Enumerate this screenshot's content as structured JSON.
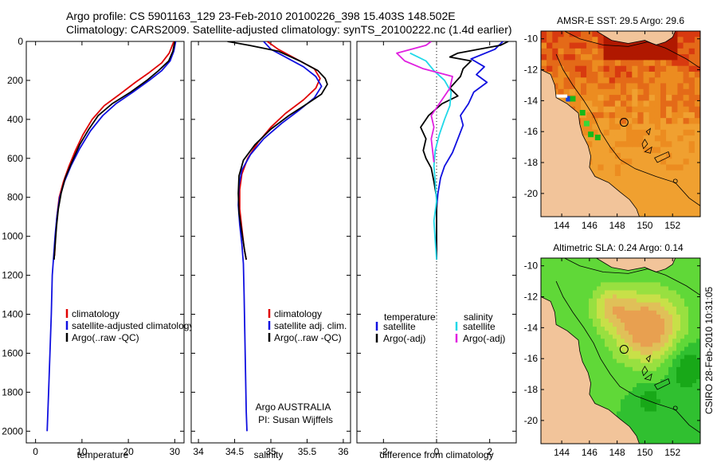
{
  "header": {
    "line1": "Argo profile: CS 5901163_129 23-Feb-2010 20100226_398 15.403S 148.502E",
    "line2": "Climatology: CARS2009. Satellite-adjusted climatology: synTS_20100222.nc (1.4d earlier)"
  },
  "colors": {
    "climatology": "#e00000",
    "satellite": "#1010e0",
    "argo": "#000000",
    "salinity_sat": "#20d8e8",
    "salinity_argo": "#e020e0",
    "land": "#f2c49a"
  },
  "chart_data": [
    {
      "id": "temperature",
      "type": "line",
      "xlabel": "temperature",
      "xlim": [
        -2,
        32
      ],
      "xticks": [
        0,
        10,
        20,
        30
      ],
      "ylim": [
        2060,
        0
      ],
      "yticks": [
        0,
        200,
        400,
        600,
        800,
        1000,
        1200,
        1400,
        1600,
        1800,
        2000
      ],
      "legend": [
        "climatology",
        "satellite-adjusted climatology",
        "Argo(..raw -QC)"
      ],
      "series": [
        {
          "name": "climatology",
          "color": "#e00000",
          "points": [
            [
              29.8,
              0
            ],
            [
              28.8,
              60
            ],
            [
              27.2,
              110
            ],
            [
              24.5,
              160
            ],
            [
              21.5,
              210
            ],
            [
              18.2,
              270
            ],
            [
              14.8,
              330
            ],
            [
              12.2,
              400
            ],
            [
              10.2,
              480
            ],
            [
              8.6,
              560
            ],
            [
              7.2,
              640
            ],
            [
              6.0,
              720
            ],
            [
              5.1,
              800
            ],
            [
              4.6,
              900
            ],
            [
              4.3,
              1000
            ],
            [
              4.1,
              1100
            ]
          ]
        },
        {
          "name": "satellite",
          "color": "#1010e0",
          "points": [
            [
              30.2,
              0
            ],
            [
              29.8,
              50
            ],
            [
              29.0,
              100
            ],
            [
              27.2,
              150
            ],
            [
              24.5,
              200
            ],
            [
              21.0,
              260
            ],
            [
              17.3,
              320
            ],
            [
              14.5,
              380
            ],
            [
              11.8,
              460
            ],
            [
              9.5,
              550
            ],
            [
              7.6,
              640
            ],
            [
              6.2,
              720
            ],
            [
              5.2,
              800
            ],
            [
              4.6,
              900
            ],
            [
              4.2,
              1000
            ],
            [
              3.9,
              1100
            ],
            [
              3.6,
              1200
            ],
            [
              3.4,
              1400
            ],
            [
              3.1,
              1600
            ],
            [
              2.8,
              1800
            ],
            [
              2.5,
              2000
            ]
          ]
        },
        {
          "name": "argo",
          "color": "#000000",
          "points": [
            [
              30.0,
              0
            ],
            [
              29.6,
              50
            ],
            [
              28.7,
              100
            ],
            [
              26.5,
              150
            ],
            [
              24.0,
              200
            ],
            [
              20.5,
              260
            ],
            [
              16.5,
              320
            ],
            [
              13.5,
              380
            ],
            [
              11.5,
              450
            ],
            [
              9.5,
              530
            ],
            [
              7.8,
              620
            ],
            [
              6.4,
              700
            ],
            [
              5.5,
              780
            ],
            [
              4.9,
              860
            ],
            [
              4.5,
              950
            ],
            [
              4.2,
              1050
            ],
            [
              4.0,
              1120
            ]
          ]
        }
      ]
    },
    {
      "id": "salinity",
      "type": "line",
      "xlabel": "salinity",
      "xlim": [
        33.9,
        36.1
      ],
      "xticks": [
        34,
        34.5,
        35,
        35.5,
        36
      ],
      "ylim": [
        2060,
        0
      ],
      "legend": [
        "climatology",
        "satellite adj. clim.",
        "Argo(..raw -QC)"
      ],
      "annotation": [
        "Argo AUSTRALIA",
        "PI: Susan Wijffels"
      ],
      "series": [
        {
          "name": "climatology",
          "color": "#e00000",
          "points": [
            [
              34.95,
              0
            ],
            [
              35.1,
              40
            ],
            [
              35.35,
              90
            ],
            [
              35.6,
              140
            ],
            [
              35.68,
              190
            ],
            [
              35.62,
              240
            ],
            [
              35.45,
              300
            ],
            [
              35.2,
              370
            ],
            [
              35.0,
              440
            ],
            [
              34.82,
              520
            ],
            [
              34.68,
              600
            ],
            [
              34.6,
              680
            ],
            [
              34.57,
              760
            ],
            [
              34.57,
              860
            ],
            [
              34.6,
              960
            ],
            [
              34.63,
              1060
            ],
            [
              34.66,
              1120
            ]
          ]
        },
        {
          "name": "satellite",
          "color": "#1010e0",
          "points": [
            [
              34.9,
              0
            ],
            [
              35.0,
              40
            ],
            [
              35.2,
              80
            ],
            [
              35.45,
              130
            ],
            [
              35.62,
              180
            ],
            [
              35.7,
              230
            ],
            [
              35.6,
              290
            ],
            [
              35.4,
              350
            ],
            [
              35.15,
              420
            ],
            [
              34.9,
              500
            ],
            [
              34.72,
              580
            ],
            [
              34.6,
              660
            ],
            [
              34.56,
              740
            ],
            [
              34.55,
              840
            ],
            [
              34.57,
              940
            ],
            [
              34.6,
              1040
            ],
            [
              34.62,
              1140
            ],
            [
              34.63,
              1300
            ],
            [
              34.64,
              1500
            ],
            [
              34.65,
              1700
            ],
            [
              34.66,
              1900
            ],
            [
              34.67,
              2000
            ]
          ]
        },
        {
          "name": "argo",
          "color": "#000000",
          "points": [
            [
              34.4,
              0
            ],
            [
              34.7,
              20
            ],
            [
              35.1,
              50
            ],
            [
              35.4,
              100
            ],
            [
              35.65,
              150
            ],
            [
              35.75,
              190
            ],
            [
              35.78,
              220
            ],
            [
              35.7,
              270
            ],
            [
              35.5,
              320
            ],
            [
              35.25,
              380
            ],
            [
              35.0,
              450
            ],
            [
              34.78,
              530
            ],
            [
              34.62,
              610
            ],
            [
              34.56,
              690
            ],
            [
              34.55,
              780
            ],
            [
              34.56,
              880
            ],
            [
              34.6,
              980
            ],
            [
              34.64,
              1080
            ],
            [
              34.66,
              1120
            ]
          ]
        }
      ]
    },
    {
      "id": "difference",
      "type": "line",
      "xlabel": "difference from climatology",
      "xlim": [
        -3,
        3
      ],
      "xticks": [
        -2,
        0,
        2
      ],
      "ylim": [
        2060,
        0
      ],
      "legend_headers": [
        "temperature",
        "salinity"
      ],
      "legend": [
        "satellite",
        "Argo(-adj)",
        "satellite",
        "Argo(-adj)"
      ],
      "series": [
        {
          "name": "temperature satellite",
          "color": "#1010e0",
          "points": [
            [
              2.5,
              0
            ],
            [
              2.2,
              40
            ],
            [
              1.3,
              90
            ],
            [
              1.8,
              130
            ],
            [
              1.5,
              170
            ],
            [
              1.9,
              210
            ],
            [
              1.4,
              260
            ],
            [
              1.2,
              320
            ],
            [
              0.9,
              380
            ],
            [
              1.0,
              430
            ],
            [
              0.8,
              500
            ],
            [
              0.6,
              570
            ],
            [
              0.3,
              640
            ],
            [
              0.15,
              700
            ],
            [
              0.05,
              780
            ],
            [
              0.0,
              860
            ],
            [
              0.0,
              950
            ],
            [
              0.0,
              1050
            ],
            [
              0.0,
              1120
            ]
          ]
        },
        {
          "name": "temperature argo",
          "color": "#000000",
          "points": [
            [
              2.7,
              0
            ],
            [
              2.4,
              20
            ],
            [
              1.6,
              40
            ],
            [
              0.8,
              60
            ],
            [
              0.5,
              80
            ],
            [
              1.3,
              100
            ],
            [
              1.0,
              140
            ],
            [
              0.9,
              180
            ],
            [
              0.5,
              240
            ],
            [
              0.8,
              280
            ],
            [
              0.2,
              320
            ],
            [
              -0.3,
              380
            ],
            [
              -0.6,
              440
            ],
            [
              -0.4,
              500
            ],
            [
              -0.5,
              560
            ],
            [
              -0.4,
              600
            ],
            [
              -0.2,
              650
            ],
            [
              -0.1,
              720
            ],
            [
              0.0,
              800
            ],
            [
              0.0,
              900
            ],
            [
              0.0,
              1000
            ],
            [
              0.0,
              1120
            ]
          ]
        },
        {
          "name": "salinity satellite",
          "color": "#20d8e8",
          "points": [
            [
              -1.0,
              60
            ],
            [
              -0.7,
              80
            ],
            [
              -0.4,
              100
            ],
            [
              -0.1,
              150
            ],
            [
              0.3,
              200
            ],
            [
              0.55,
              260
            ],
            [
              0.5,
              330
            ],
            [
              0.3,
              400
            ],
            [
              0.1,
              480
            ],
            [
              -0.05,
              560
            ],
            [
              -0.1,
              640
            ],
            [
              -0.05,
              720
            ],
            [
              0.0,
              820
            ],
            [
              -0.1,
              920
            ],
            [
              -0.05,
              1020
            ],
            [
              0.0,
              1120
            ]
          ]
        },
        {
          "name": "salinity argo",
          "color": "#e020e0",
          "points": [
            [
              -0.2,
              0
            ],
            [
              -0.4,
              20
            ],
            [
              -1.5,
              60
            ],
            [
              -1.2,
              100
            ],
            [
              -0.5,
              140
            ],
            [
              0.6,
              180
            ],
            [
              0.5,
              240
            ],
            [
              0.2,
              300
            ],
            [
              0.0,
              340
            ],
            [
              -0.2,
              380
            ],
            [
              -0.1,
              440
            ],
            [
              -0.2,
              500
            ],
            [
              -0.15,
              560
            ],
            [
              -0.1,
              620
            ]
          ]
        }
      ]
    },
    {
      "id": "sst_map",
      "type": "heatmap",
      "title": "AMSR-E SST: 29.5 Argo: 29.6",
      "xlim": [
        142.5,
        154
      ],
      "xticks": [
        144,
        146,
        148,
        150,
        152
      ],
      "ylim": [
        -21.5,
        -9.5
      ],
      "yticks": [
        -10,
        -12,
        -14,
        -16,
        -18,
        -20
      ],
      "float_position": [
        148.5,
        -15.4
      ]
    },
    {
      "id": "sla_map",
      "type": "heatmap",
      "title": "Altimetric SLA: 0.24 Argo: 0.14",
      "xlim": [
        142.5,
        154
      ],
      "xticks": [
        144,
        146,
        148,
        150,
        152
      ],
      "ylim": [
        -21.5,
        -9.5
      ],
      "yticks": [
        -10,
        -12,
        -14,
        -16,
        -18,
        -20
      ],
      "float_position": [
        148.5,
        -15.4
      ]
    }
  ],
  "credit": "CSIRO 28-Feb-2010 10:31:05"
}
